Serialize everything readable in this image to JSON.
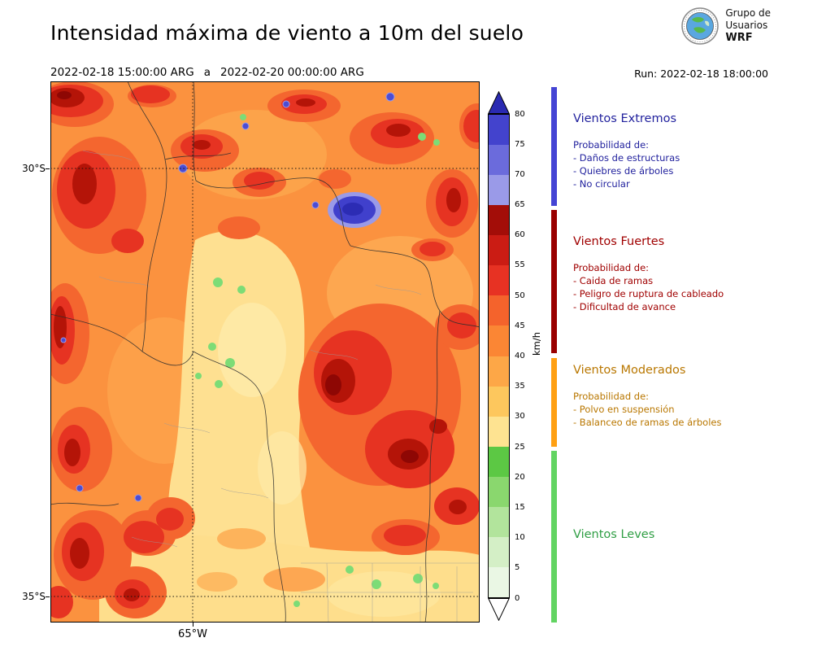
{
  "header": {
    "title": "Intensidad máxima de viento a 10m del suelo",
    "period": {
      "start": "2022-02-18 15:00:00 ARG",
      "separator": "a",
      "end": "2022-02-20 00:00:00 ARG"
    },
    "run_label": "Run: 2022-02-18 18:00:00",
    "logo": {
      "line1": "Grupo de",
      "line2": "Usuarios",
      "line3": "WRF"
    }
  },
  "map": {
    "lat_ticks": [
      {
        "label": "30°S"
      },
      {
        "label": "35°S"
      }
    ],
    "lon_ticks": [
      {
        "label": "65°W"
      }
    ]
  },
  "colorbar": {
    "unit": "km/h",
    "ticks": [
      "0",
      "5",
      "10",
      "15",
      "20",
      "25",
      "30",
      "35",
      "40",
      "45",
      "50",
      "55",
      "60",
      "65",
      "70",
      "75",
      "80"
    ],
    "segments": [
      "#eaf7e4",
      "#d4efc6",
      "#b2e49c",
      "#8ad76e",
      "#5cc844",
      "#fee391",
      "#fdc75d",
      "#fda747",
      "#fb8634",
      "#f4632c",
      "#e73223",
      "#cb1c14",
      "#a30d08",
      "#9a9ae8",
      "#6b6bdc",
      "#4343cd"
    ],
    "arrow_top_color": "#2a2ab2",
    "arrow_bottom_color": "#ffffff"
  },
  "legend": {
    "categories": [
      {
        "title": "Vientos Extremos",
        "text_color": "#22229e",
        "bar_color": "#4444d4",
        "subtitle": "Probabilidad de:",
        "items": [
          "- Daños de estructuras",
          "- Quiebres de árboles",
          "- No circular"
        ]
      },
      {
        "title": "Vientos Fuertes",
        "text_color": "#a00000",
        "bar_color": "#990000",
        "subtitle": "Probabilidad de:",
        "items": [
          "- Caida de ramas",
          "- Peligro de ruptura de cableado",
          "- Dificultad de avance"
        ]
      },
      {
        "title": "Vientos Moderados",
        "text_color": "#b97700",
        "bar_color": "#ffa013",
        "subtitle": "Probabilidad de:",
        "items": [
          "- Polvo en suspensión",
          "- Balanceo de ramas de árboles"
        ]
      },
      {
        "title": "Vientos Leves",
        "text_color": "#2f9e44",
        "bar_color": "#62d462",
        "subtitle": "",
        "items": []
      }
    ]
  }
}
